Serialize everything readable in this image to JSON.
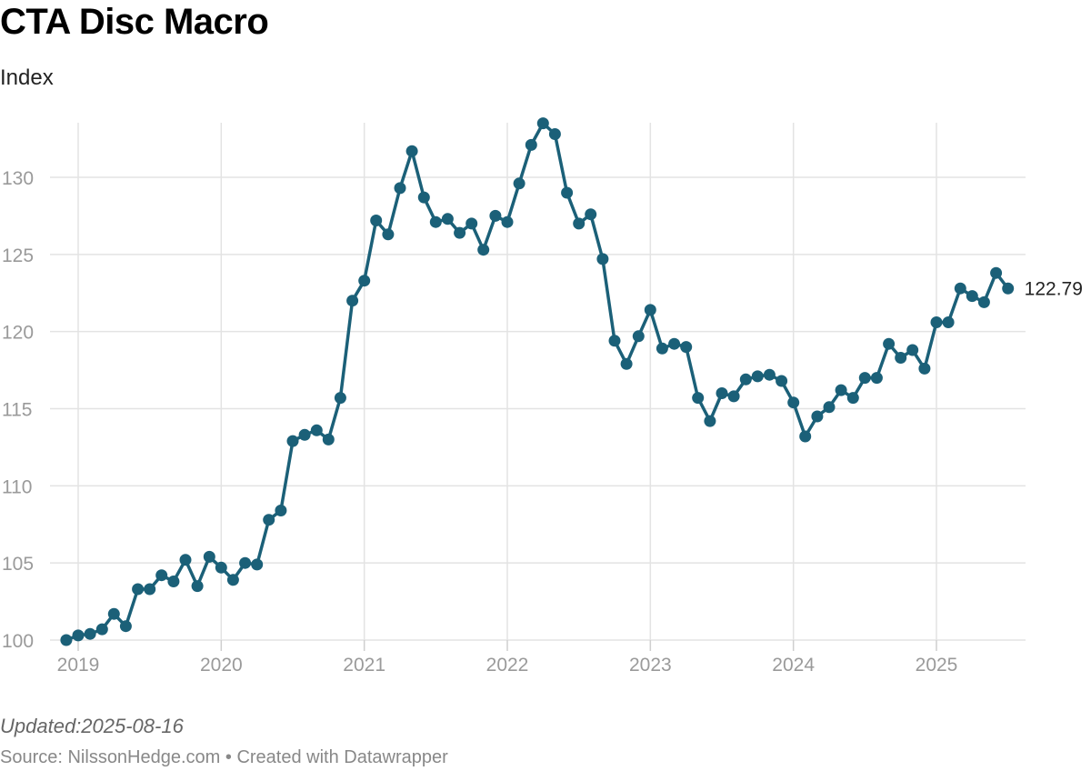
{
  "header": {
    "title": "CTA Disc Macro",
    "subtitle": "Index"
  },
  "footer": {
    "updated": "Updated:2025-08-16",
    "source": "Source: NilssonHedge.com • Created with Datawrapper"
  },
  "colors": {
    "line": "#1b6078",
    "grid": "#e3e3e3",
    "tick": "#9a9a9a"
  },
  "chart_data": {
    "type": "line",
    "title": "CTA Disc Macro",
    "ylabel": "Index",
    "x_unit": "date (fractional year)",
    "ylim": [
      100,
      133.5
    ],
    "xlim": [
      2018.9,
      2025.6
    ],
    "y_ticks": [
      100,
      105,
      110,
      115,
      120,
      125,
      130
    ],
    "x_ticks": [
      2019,
      2020,
      2021,
      2022,
      2023,
      2024,
      2025
    ],
    "grid": true,
    "markers": true,
    "end_label": "122.79",
    "series": [
      {
        "x": [
          2018.917,
          2019.0,
          2019.083,
          2019.167,
          2019.25,
          2019.333,
          2019.417,
          2019.5,
          2019.583,
          2019.667,
          2019.75,
          2019.833,
          2019.917,
          2020.0,
          2020.083,
          2020.167,
          2020.25,
          2020.333,
          2020.417,
          2020.5,
          2020.583,
          2020.667,
          2020.75,
          2020.833,
          2020.917,
          2021.0,
          2021.083,
          2021.167,
          2021.25,
          2021.333,
          2021.417,
          2021.5,
          2021.583,
          2021.667,
          2021.75,
          2021.833,
          2021.917,
          2022.0,
          2022.083,
          2022.167,
          2022.25,
          2022.333,
          2022.417,
          2022.5,
          2022.583,
          2022.667,
          2022.75,
          2022.833,
          2022.917,
          2023.0,
          2023.083,
          2023.167,
          2023.25,
          2023.333,
          2023.417,
          2023.5,
          2023.583,
          2023.667,
          2023.75,
          2023.833,
          2023.917,
          2024.0,
          2024.083,
          2024.167,
          2024.25,
          2024.333,
          2024.417,
          2024.5,
          2024.583,
          2024.667,
          2024.75,
          2024.833,
          2024.917,
          2025.0,
          2025.083,
          2025.167,
          2025.25,
          2025.333,
          2025.417,
          2025.5
        ],
        "values": [
          100.0,
          100.3,
          100.4,
          100.7,
          101.7,
          100.9,
          103.3,
          103.3,
          104.2,
          103.8,
          105.2,
          103.5,
          105.4,
          104.7,
          103.9,
          105.0,
          104.9,
          107.8,
          108.4,
          112.9,
          113.3,
          113.6,
          113.0,
          115.7,
          122.0,
          123.3,
          127.2,
          126.3,
          129.3,
          131.7,
          128.7,
          127.1,
          127.3,
          126.4,
          127.0,
          125.3,
          127.5,
          127.1,
          129.6,
          132.1,
          133.5,
          132.8,
          129.0,
          127.0,
          127.6,
          124.7,
          119.4,
          117.9,
          119.7,
          121.4,
          118.9,
          119.2,
          119.0,
          115.7,
          114.2,
          116.0,
          115.8,
          116.9,
          117.1,
          117.2,
          116.8,
          115.4,
          113.2,
          114.5,
          115.1,
          116.2,
          115.7,
          117.0,
          117.0,
          119.2,
          118.3,
          118.8,
          117.6,
          120.6,
          120.6,
          122.8,
          122.3,
          121.9,
          123.8,
          122.79
        ]
      }
    ]
  }
}
